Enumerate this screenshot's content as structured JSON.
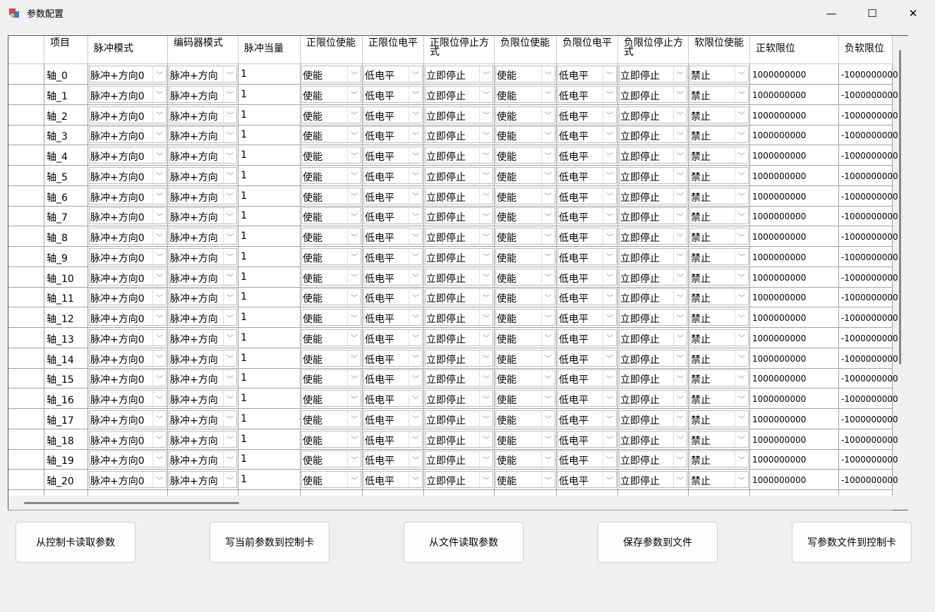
{
  "window": {
    "title": "参数配置",
    "minimize": "—",
    "maximize": "☐",
    "close": "✕"
  },
  "columns": [
    "",
    "项目",
    "脉冲模式",
    "编码器模式",
    "脉冲当量",
    "正限位使能",
    "正限位电平",
    "正限位停止方式",
    "负限位使能",
    "负限位电平",
    "负限位停止方式",
    "软限位使能",
    "正软限位",
    "负软限位"
  ],
  "column_types": [
    "rowheader",
    "text",
    "combo",
    "combo",
    "text",
    "combo",
    "combo",
    "combo",
    "combo",
    "combo",
    "combo",
    "combo",
    "num",
    "num"
  ],
  "rows": [
    {
      "cells": [
        "",
        "轴_0",
        "脉冲+方向0",
        "脉冲+方向",
        "1",
        "使能",
        "低电平",
        "立即停止",
        "使能",
        "低电平",
        "立即停止",
        "禁止",
        "1000000000",
        "-1000000000"
      ]
    },
    {
      "cells": [
        "",
        "轴_1",
        "脉冲+方向0",
        "脉冲+方向",
        "1",
        "使能",
        "低电平",
        "立即停止",
        "使能",
        "低电平",
        "立即停止",
        "禁止",
        "1000000000",
        "-1000000000"
      ]
    },
    {
      "cells": [
        "",
        "轴_2",
        "脉冲+方向0",
        "脉冲+方向",
        "1",
        "使能",
        "低电平",
        "立即停止",
        "使能",
        "低电平",
        "立即停止",
        "禁止",
        "1000000000",
        "-1000000000"
      ]
    },
    {
      "cells": [
        "",
        "轴_3",
        "脉冲+方向0",
        "脉冲+方向",
        "1",
        "使能",
        "低电平",
        "立即停止",
        "使能",
        "低电平",
        "立即停止",
        "禁止",
        "1000000000",
        "-1000000000"
      ]
    },
    {
      "cells": [
        "",
        "轴_4",
        "脉冲+方向0",
        "脉冲+方向",
        "1",
        "使能",
        "低电平",
        "立即停止",
        "使能",
        "低电平",
        "立即停止",
        "禁止",
        "1000000000",
        "-1000000000"
      ]
    },
    {
      "cells": [
        "",
        "轴_5",
        "脉冲+方向0",
        "脉冲+方向",
        "1",
        "使能",
        "低电平",
        "立即停止",
        "使能",
        "低电平",
        "立即停止",
        "禁止",
        "1000000000",
        "-1000000000"
      ]
    },
    {
      "cells": [
        "",
        "轴_6",
        "脉冲+方向0",
        "脉冲+方向",
        "1",
        "使能",
        "低电平",
        "立即停止",
        "使能",
        "低电平",
        "立即停止",
        "禁止",
        "1000000000",
        "-1000000000"
      ]
    },
    {
      "cells": [
        "",
        "轴_7",
        "脉冲+方向0",
        "脉冲+方向",
        "1",
        "使能",
        "低电平",
        "立即停止",
        "使能",
        "低电平",
        "立即停止",
        "禁止",
        "1000000000",
        "-1000000000"
      ]
    },
    {
      "cells": [
        "",
        "轴_8",
        "脉冲+方向0",
        "脉冲+方向",
        "1",
        "使能",
        "低电平",
        "立即停止",
        "使能",
        "低电平",
        "立即停止",
        "禁止",
        "1000000000",
        "-1000000000"
      ]
    },
    {
      "cells": [
        "",
        "轴_9",
        "脉冲+方向0",
        "脉冲+方向",
        "1",
        "使能",
        "低电平",
        "立即停止",
        "使能",
        "低电平",
        "立即停止",
        "禁止",
        "1000000000",
        "-1000000000"
      ]
    },
    {
      "cells": [
        "",
        "轴_10",
        "脉冲+方向0",
        "脉冲+方向",
        "1",
        "使能",
        "低电平",
        "立即停止",
        "使能",
        "低电平",
        "立即停止",
        "禁止",
        "1000000000",
        "-1000000000"
      ]
    },
    {
      "cells": [
        "",
        "轴_11",
        "脉冲+方向0",
        "脉冲+方向",
        "1",
        "使能",
        "低电平",
        "立即停止",
        "使能",
        "低电平",
        "立即停止",
        "禁止",
        "1000000000",
        "-1000000000"
      ]
    },
    {
      "cells": [
        "",
        "轴_12",
        "脉冲+方向0",
        "脉冲+方向",
        "1",
        "使能",
        "低电平",
        "立即停止",
        "使能",
        "低电平",
        "立即停止",
        "禁止",
        "1000000000",
        "-1000000000"
      ]
    },
    {
      "cells": [
        "",
        "轴_13",
        "脉冲+方向0",
        "脉冲+方向",
        "1",
        "使能",
        "低电平",
        "立即停止",
        "使能",
        "低电平",
        "立即停止",
        "禁止",
        "1000000000",
        "-1000000000"
      ]
    },
    {
      "cells": [
        "",
        "轴_14",
        "脉冲+方向0",
        "脉冲+方向",
        "1",
        "使能",
        "低电平",
        "立即停止",
        "使能",
        "低电平",
        "立即停止",
        "禁止",
        "1000000000",
        "-1000000000"
      ]
    },
    {
      "cells": [
        "",
        "轴_15",
        "脉冲+方向0",
        "脉冲+方向",
        "1",
        "使能",
        "低电平",
        "立即停止",
        "使能",
        "低电平",
        "立即停止",
        "禁止",
        "1000000000",
        "-1000000000"
      ]
    },
    {
      "cells": [
        "",
        "轴_16",
        "脉冲+方向0",
        "脉冲+方向",
        "1",
        "使能",
        "低电平",
        "立即停止",
        "使能",
        "低电平",
        "立即停止",
        "禁止",
        "1000000000",
        "-1000000000"
      ]
    },
    {
      "cells": [
        "",
        "轴_17",
        "脉冲+方向0",
        "脉冲+方向",
        "1",
        "使能",
        "低电平",
        "立即停止",
        "使能",
        "低电平",
        "立即停止",
        "禁止",
        "1000000000",
        "-1000000000"
      ]
    },
    {
      "cells": [
        "",
        "轴_18",
        "脉冲+方向0",
        "脉冲+方向",
        "1",
        "使能",
        "低电平",
        "立即停止",
        "使能",
        "低电平",
        "立即停止",
        "禁止",
        "1000000000",
        "-1000000000"
      ]
    },
    {
      "cells": [
        "",
        "轴_19",
        "脉冲+方向0",
        "脉冲+方向",
        "1",
        "使能",
        "低电平",
        "立即停止",
        "使能",
        "低电平",
        "立即停止",
        "禁止",
        "1000000000",
        "-1000000000"
      ]
    },
    {
      "cells": [
        "",
        "轴_20",
        "脉冲+方向0",
        "脉冲+方向",
        "1",
        "使能",
        "低电平",
        "立即停止",
        "使能",
        "低电平",
        "立即停止",
        "禁止",
        "1000000000",
        "-1000000000"
      ]
    }
  ],
  "buttons": [
    "从控制卡读取参数",
    "写当前参数到控制卡",
    "从文件读取参数",
    "保存参数到文件",
    "写参数文件到控制卡"
  ]
}
